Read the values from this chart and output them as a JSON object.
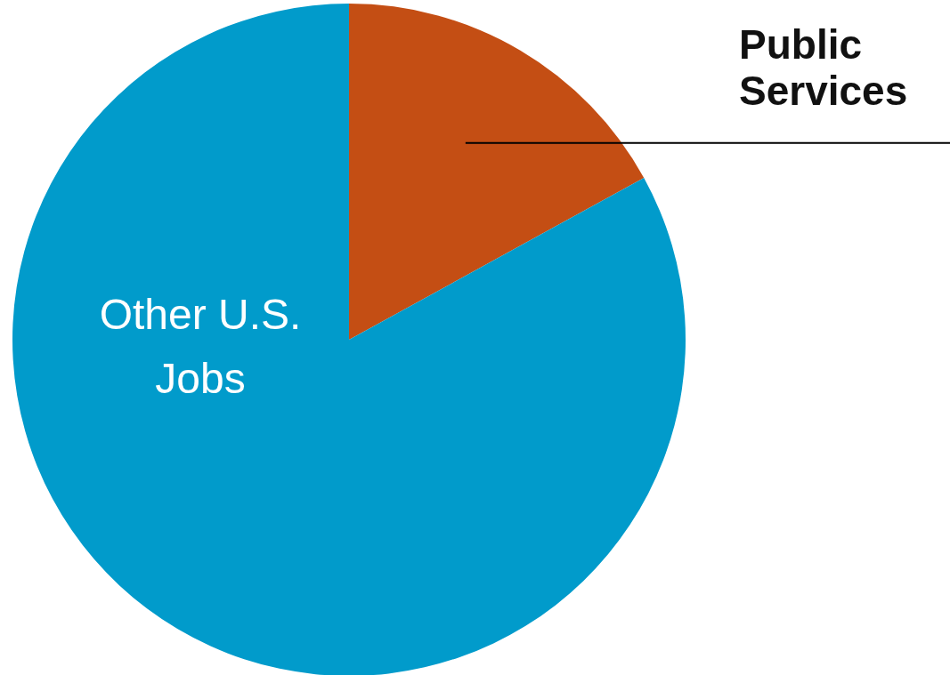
{
  "chart_data": {
    "type": "pie",
    "categories": [
      "Public Services",
      "Other U.S. Jobs"
    ],
    "values": [
      17,
      83
    ],
    "colors": [
      "#c44e14",
      "#019bcb"
    ]
  }
}
